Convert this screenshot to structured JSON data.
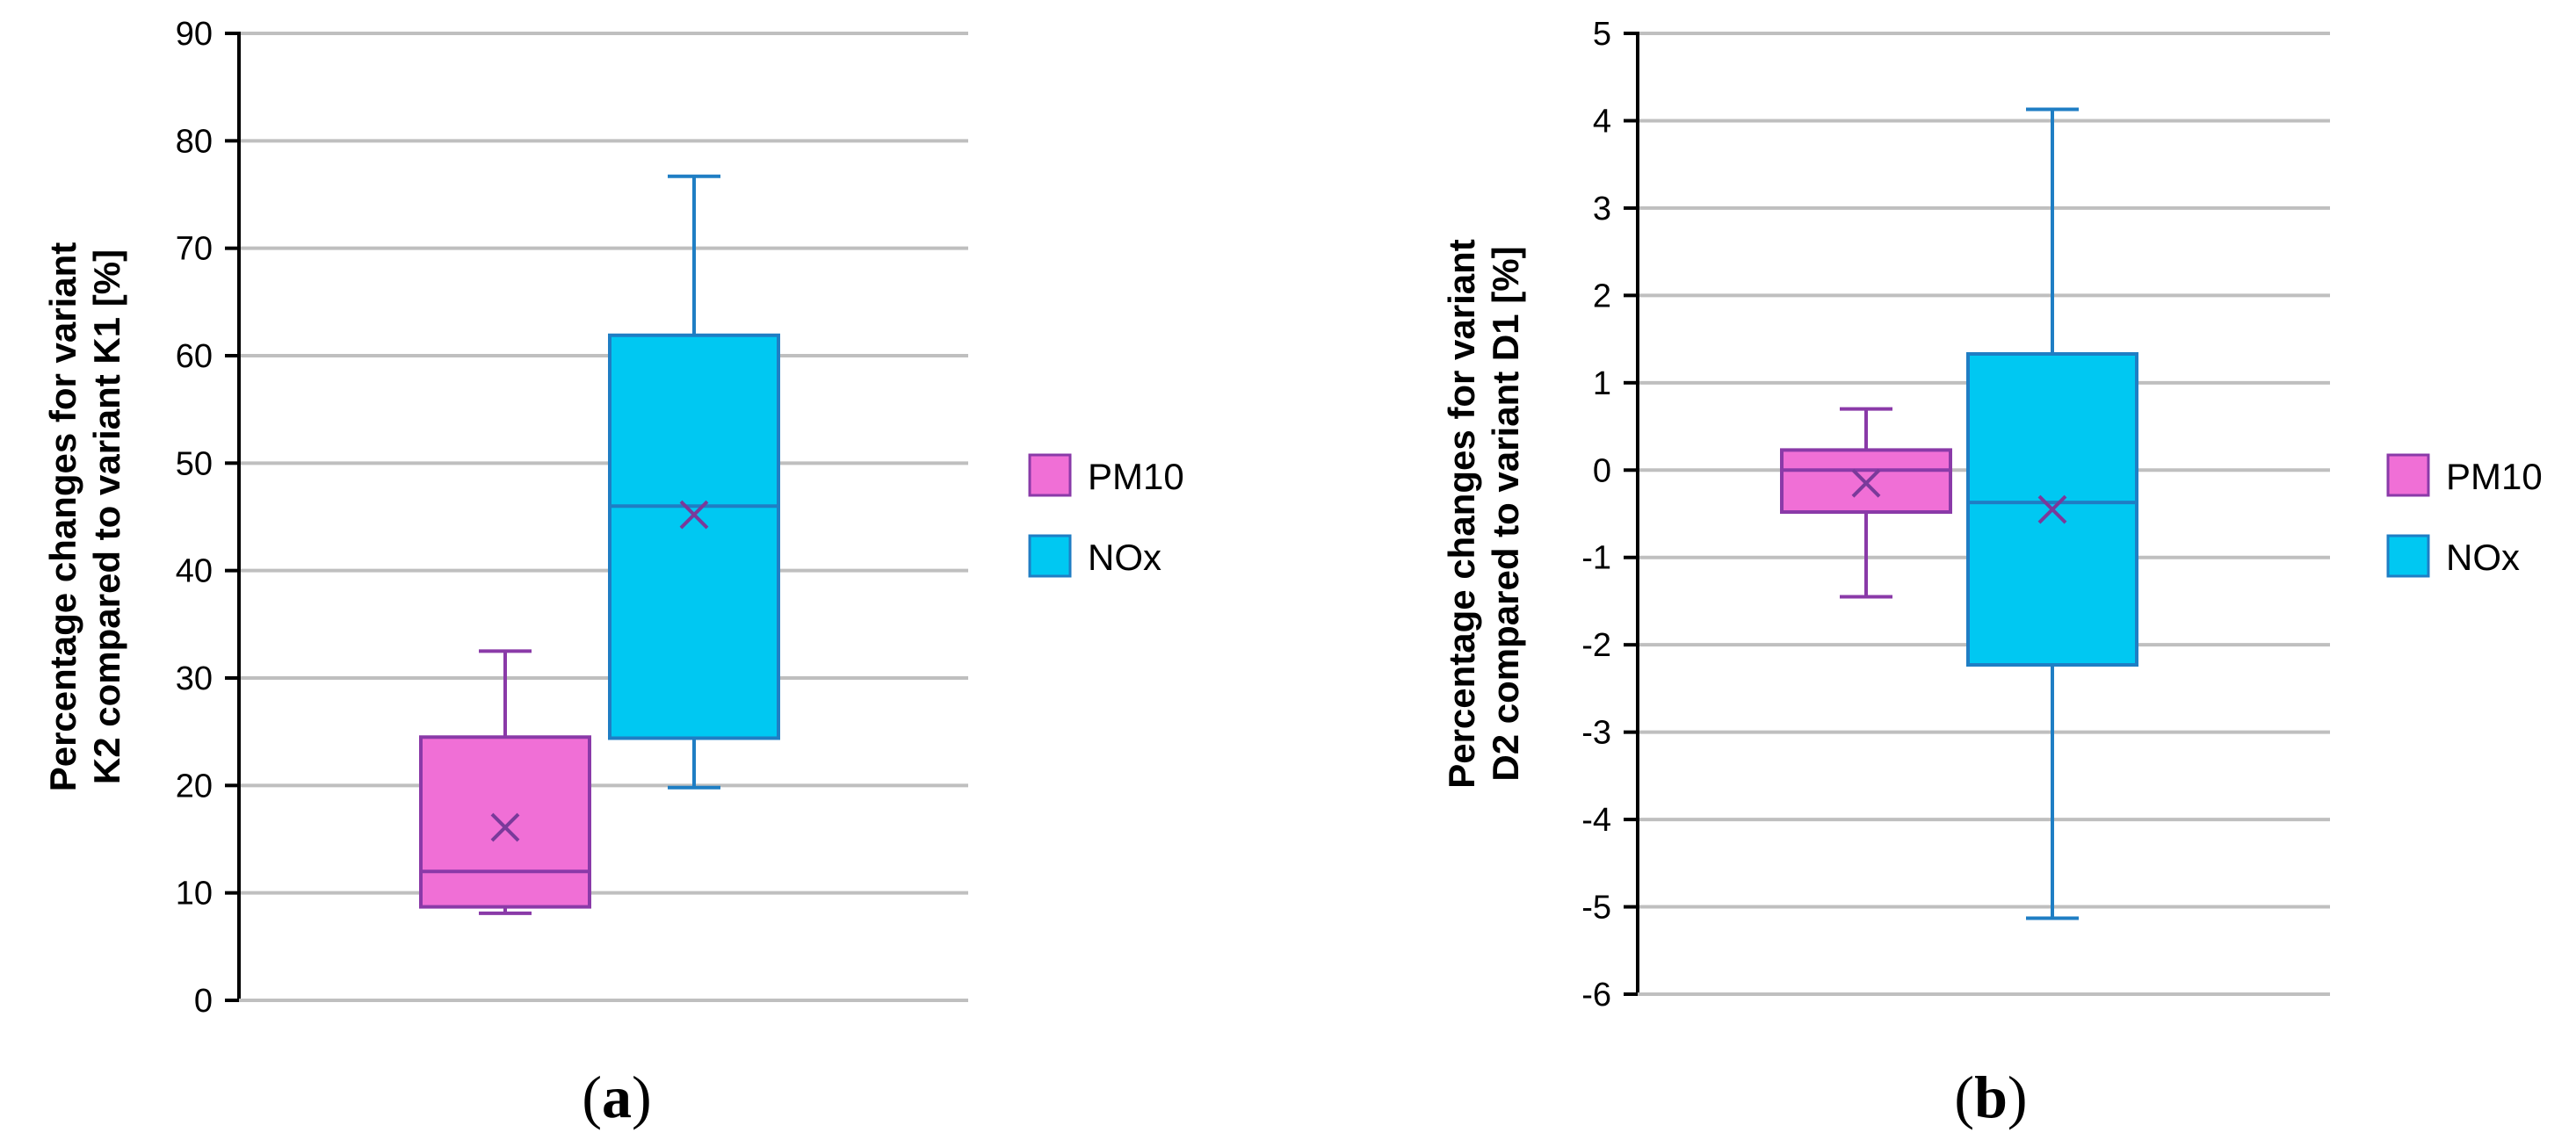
{
  "chart_data": [
    {
      "type": "box",
      "panel_label": "a",
      "ylabel_lines": [
        "Percentage changes for variant",
        "K2 compared to variant K1 [%]"
      ],
      "ylim": [
        0,
        90
      ],
      "yticks": [
        0,
        10,
        20,
        30,
        40,
        50,
        60,
        70,
        80,
        90
      ],
      "grid": true,
      "legend_position": "right",
      "series": [
        {
          "name": "PM10",
          "color": "#f06fd6",
          "edge_color": "#8a3aa8",
          "whisker_low": 8.1,
          "q1": 8.7,
          "median": 12.0,
          "q3": 24.5,
          "whisker_high": 32.5,
          "mean": 16.1
        },
        {
          "name": "NOx",
          "color": "#00c8f2",
          "edge_color": "#1f7ec4",
          "whisker_low": 19.8,
          "q1": 24.4,
          "median": 46.0,
          "q3": 61.9,
          "whisker_high": 76.7,
          "mean": 45.2
        }
      ]
    },
    {
      "type": "box",
      "panel_label": "b",
      "ylabel_lines": [
        "Percentage changes for variant",
        "D2 compared to variant D1 [%]"
      ],
      "ylim": [
        -6,
        5
      ],
      "yticks": [
        -6,
        -5,
        -4,
        -3,
        -2,
        -1,
        0,
        1,
        2,
        3,
        4,
        5
      ],
      "grid": true,
      "legend_position": "right",
      "series": [
        {
          "name": "PM10",
          "color": "#f06fd6",
          "edge_color": "#8a3aa8",
          "whisker_low": -1.45,
          "q1": -0.48,
          "median": 0.0,
          "q3": 0.23,
          "whisker_high": 0.7,
          "mean": -0.15
        },
        {
          "name": "NOx",
          "color": "#00c8f2",
          "edge_color": "#1f7ec4",
          "whisker_low": -5.13,
          "q1": -2.23,
          "median": -0.37,
          "q3": 1.33,
          "whisker_high": 4.13,
          "mean": -0.45
        }
      ]
    }
  ],
  "colors": {
    "grid": "#bfbfbf",
    "axis": "#000000",
    "marker": "#7a3a9a"
  }
}
